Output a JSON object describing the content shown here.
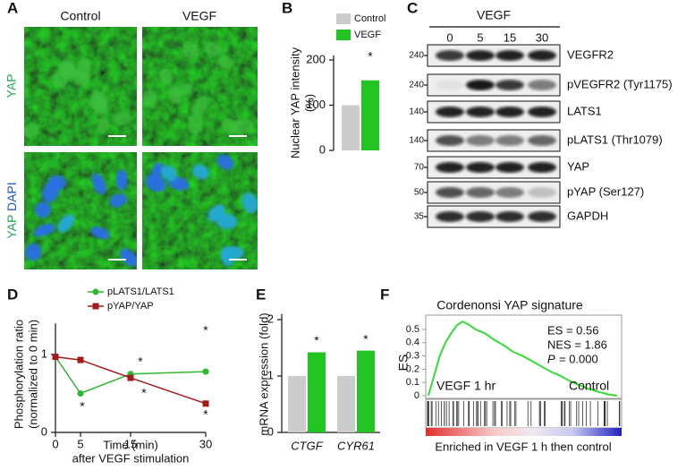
{
  "panel_labels": [
    "A",
    "B",
    "C",
    "D",
    "E",
    "F"
  ],
  "panel_a": {
    "columns": [
      "Control",
      "VEGF"
    ],
    "row1": "YAP",
    "row2_yap": "YAP",
    "row2_dapi": "DAPI"
  },
  "blot": {
    "treatment": "VEGF",
    "lanes": [
      0,
      5,
      15,
      30
    ],
    "rows": [
      {
        "mw": 240,
        "protein": "VEGFR2"
      },
      {
        "mw": 240,
        "protein": "pVEGFR2 (Tyr1175)"
      },
      {
        "mw": 140,
        "protein": "LATS1"
      },
      {
        "mw": 140,
        "protein": "pLATS1 (Thr1079)"
      },
      {
        "mw": 70,
        "protein": "YAP"
      },
      {
        "mw": 50,
        "protein": "pYAP (Ser127)"
      },
      {
        "mw": 35,
        "protein": "GAPDH"
      }
    ]
  },
  "chart_data": [
    {
      "type": "bar",
      "ylabel": [
        "Nuclear YAP intensity",
        "(%)"
      ],
      "series": [
        {
          "name": "Control",
          "color": "#cccccc",
          "values": [
            100
          ]
        },
        {
          "name": "VEGF",
          "color": "#22c422",
          "values": [
            155
          ]
        }
      ],
      "ylim": [
        0,
        210
      ],
      "yticks": [
        0,
        100,
        200
      ],
      "annotations": [
        "*"
      ]
    },
    {
      "type": "line",
      "ylabel": [
        "Phosphorylation ratio",
        "(normalized to 0 min)"
      ],
      "xlabel": [
        "Time (min)",
        "after VEGF stimulation"
      ],
      "x": [
        0,
        5,
        15,
        30
      ],
      "xlim": [
        0,
        30
      ],
      "xticks": [
        0,
        5,
        15,
        30
      ],
      "ylim": [
        0,
        1.4
      ],
      "yticks": [
        0,
        1
      ],
      "series": [
        {
          "name": "pLATS1/LATS1",
          "color": "#2eb82e",
          "values": [
            0.97,
            0.5,
            0.75,
            0.78
          ]
        },
        {
          "name": "pYAP/YAP",
          "color": "#a31a1a",
          "values": [
            0.97,
            0.93,
            0.7,
            0.37
          ]
        }
      ],
      "annotations": [
        "*",
        "*",
        "*",
        "*",
        "*"
      ]
    },
    {
      "type": "bar",
      "ylabel": [
        "mRNA expression (fold)"
      ],
      "categories": [
        "CTGF",
        "CYR61"
      ],
      "series": [
        {
          "name": "Control",
          "color": "#cccccc",
          "values": [
            1,
            1
          ]
        },
        {
          "name": "VEGF",
          "color": "#22c422",
          "values": [
            1.42,
            1.45
          ]
        }
      ],
      "ylim": [
        0,
        2.1
      ],
      "yticks": [
        0,
        1,
        2
      ],
      "annotations": [
        "*",
        "*"
      ]
    },
    {
      "type": "gsea",
      "title": "Cordenonsi YAP signature",
      "ylabel": [
        "ES"
      ],
      "x": [
        0,
        3,
        6,
        9,
        12,
        15,
        18,
        21,
        25,
        30,
        35,
        40,
        45,
        50,
        55,
        60,
        65,
        70,
        75,
        80,
        85,
        90,
        95,
        100
      ],
      "values": [
        0,
        0.15,
        0.3,
        0.4,
        0.47,
        0.53,
        0.56,
        0.54,
        0.5,
        0.47,
        0.42,
        0.38,
        0.33,
        0.3,
        0.26,
        0.22,
        0.18,
        0.15,
        0.11,
        0.08,
        0.05,
        0.03,
        0.01,
        0
      ],
      "color": "#33dd33",
      "xlim": [
        0,
        100
      ],
      "ylim": [
        -0.02,
        0.6
      ],
      "yticks": [
        0,
        0.1,
        0.2,
        0.3,
        0.4,
        0.5
      ],
      "stats": [
        "ES = 0.56",
        "NES = 1.86"
      ],
      "p_label": "P",
      "p_text": "= 0.000",
      "left_label": "VEGF 1 hr",
      "right_label": "Control",
      "caption": "Enriched in VEGF 1 h then control"
    }
  ]
}
